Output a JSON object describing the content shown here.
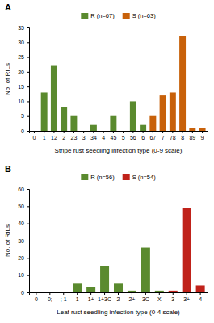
{
  "chart_data": [
    {
      "type": "bar",
      "title": "A",
      "x_label": "Stripe rust seedling infection type (0-9 scale)",
      "y_label": "No. of RILs",
      "categories": [
        "0",
        "1",
        "12",
        "2",
        "23",
        "3",
        "34",
        "4",
        "45",
        "5",
        "56",
        "6",
        "67",
        "7",
        "78",
        "8",
        "89",
        "9"
      ],
      "series": [
        {
          "name": "R (n=67)",
          "color": "#5a8a2e",
          "values": [
            0,
            13,
            22,
            8,
            5,
            0,
            2,
            0,
            5,
            0,
            10,
            2,
            0,
            0,
            0,
            0,
            0,
            0
          ]
        },
        {
          "name": "S (n=63)",
          "color": "#c8610a",
          "values": [
            0,
            0,
            0,
            0,
            0,
            0,
            0,
            0,
            0,
            0,
            0,
            0,
            5,
            12,
            13,
            32,
            1,
            1
          ]
        }
      ],
      "ylim": [
        0,
        35
      ],
      "yticks": [
        0,
        5,
        10,
        15,
        20,
        25,
        30,
        35
      ],
      "grid": false,
      "legend": "upper center"
    },
    {
      "type": "bar",
      "title": "B",
      "x_label": "Leaf rust seedling infection type (0-4 scale)",
      "y_label": "No. of RILs",
      "categories": [
        "0",
        "0;",
        "; 1",
        "1",
        "1+",
        "1+3C",
        "2",
        "2+",
        "3C",
        "X",
        "3",
        "3+",
        "4"
      ],
      "series": [
        {
          "name": "R (n=56)",
          "color": "#5a8a2e",
          "values": [
            0,
            0,
            0,
            5,
            3,
            15,
            5,
            1,
            26,
            1,
            0,
            0,
            0
          ]
        },
        {
          "name": "S (n=54)",
          "color": "#c0221a",
          "values": [
            0,
            0,
            0,
            0,
            0,
            0,
            0,
            0,
            0,
            0,
            1,
            49,
            4
          ]
        }
      ],
      "ylim": [
        0,
        60
      ],
      "yticks": [
        0,
        10,
        20,
        30,
        40,
        50,
        60
      ],
      "grid": false,
      "legend": "upper center"
    }
  ]
}
